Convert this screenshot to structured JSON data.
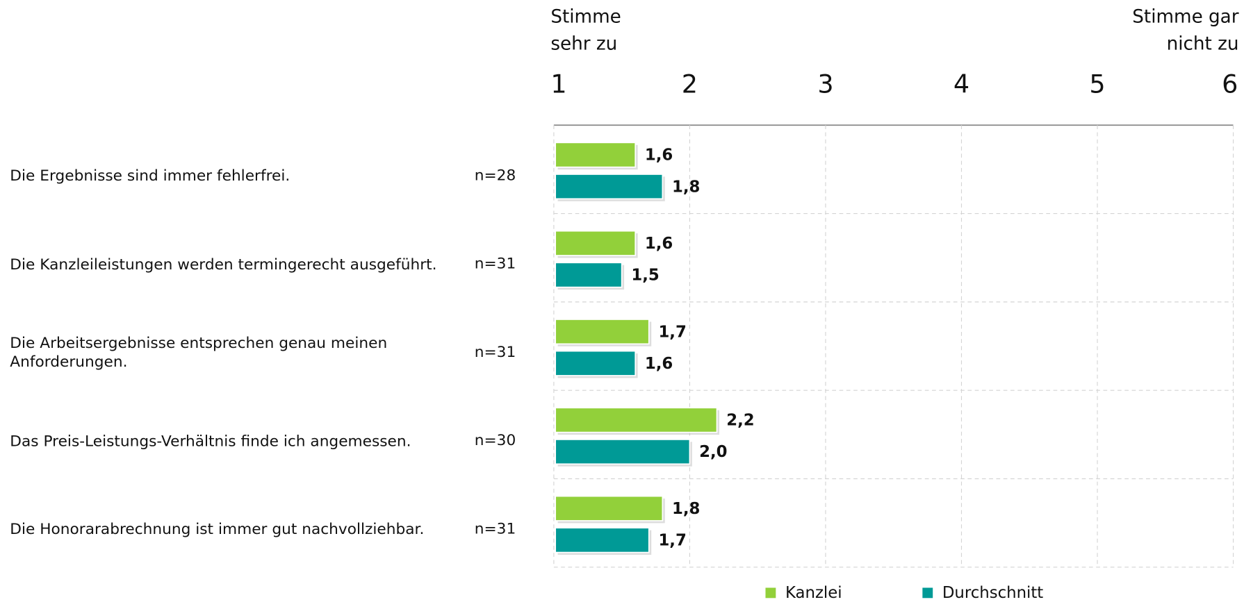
{
  "chart_data": {
    "type": "bar",
    "orientation": "horizontal",
    "axis_left_label": [
      "Stimme",
      "sehr zu"
    ],
    "axis_right_label": [
      "Stimme gar",
      "nicht zu"
    ],
    "categories": [
      "Die Ergebnisse sind immer fehlerfrei.",
      "Die Kanzleileistungen werden termingerecht ausgeführt.",
      "Die Arbeitsergebnisse entsprechen genau meinen Anforderungen.",
      "Das Preis-Leistungs-Verhältnis finde ich angemessen.",
      "Die Honorarabrechnung ist immer gut nachvollziehbar."
    ],
    "n_labels": [
      "n=28",
      "n=31",
      "n=31",
      "n=30",
      "n=31"
    ],
    "series": [
      {
        "name": "Kanzlei",
        "color": "#92d03a",
        "values": [
          1.6,
          1.6,
          1.7,
          2.2,
          1.8
        ],
        "value_labels": [
          "1,6",
          "1,6",
          "1,7",
          "2,2",
          "1,8"
        ]
      },
      {
        "name": "Durchschnitt",
        "color": "#009a96",
        "values": [
          1.8,
          1.5,
          1.6,
          2.0,
          1.7
        ],
        "value_labels": [
          "1,8",
          "1,5",
          "1,6",
          "2,0",
          "1,7"
        ]
      }
    ],
    "xlim": [
      1,
      6
    ],
    "xticks": [
      1,
      2,
      3,
      4,
      5,
      6
    ],
    "grid": true,
    "legend": "bottom"
  }
}
